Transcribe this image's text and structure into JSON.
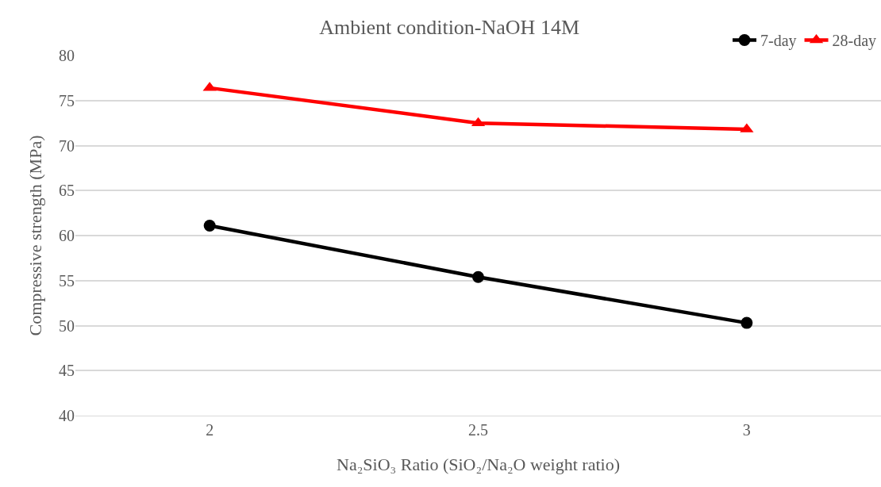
{
  "chart_data": {
    "type": "line",
    "title": "Ambient condition-NaOH 14M",
    "xlabel": "Na₂SiO₃ Ratio (SiO₂/Na₂O weight ratio)",
    "ylabel": "Compressive strength (MPa)",
    "categories": [
      "2",
      "2.5",
      "3"
    ],
    "series": [
      {
        "name": "7-day",
        "color": "#000000",
        "marker": "circle",
        "values": [
          61.1,
          55.4,
          50.3
        ]
      },
      {
        "name": "28-day",
        "color": "#ff0000",
        "marker": "triangle",
        "values": [
          76.4,
          72.5,
          71.8
        ]
      }
    ],
    "ylim": [
      40,
      80
    ],
    "yticks": [
      40,
      45,
      50,
      55,
      60,
      65,
      70,
      75,
      80
    ],
    "grid": "y",
    "legend": "top right",
    "line_style": "solid"
  }
}
